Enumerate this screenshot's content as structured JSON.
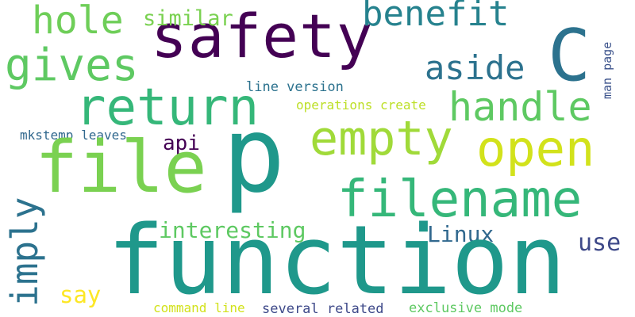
{
  "words": [
    {
      "text": "hole",
      "color": "#6ece58"
    },
    {
      "text": "safety",
      "color": "#440154"
    },
    {
      "text": "similar",
      "color": "#7ad151"
    },
    {
      "text": "benefit",
      "color": "#26828e"
    },
    {
      "text": "C",
      "color": "#2c728e"
    },
    {
      "text": "gives",
      "color": "#5ec962"
    },
    {
      "text": "aside",
      "color": "#2c728e"
    },
    {
      "text": "man page",
      "color": "#3b528b"
    },
    {
      "text": "line version",
      "color": "#2c728e"
    },
    {
      "text": "return",
      "color": "#35b779"
    },
    {
      "text": "handle",
      "color": "#5ec962"
    },
    {
      "text": "operations create",
      "color": "#bddf26"
    },
    {
      "text": "empty",
      "color": "#a0da39"
    },
    {
      "text": "mkstemp leaves",
      "color": "#31688e"
    },
    {
      "text": "api",
      "color": "#440154"
    },
    {
      "text": "open",
      "color": "#d2e21b"
    },
    {
      "text": "file",
      "color": "#7ad151"
    },
    {
      "text": "p",
      "color": "#1f988b"
    },
    {
      "text": "imply",
      "color": "#2c728e"
    },
    {
      "text": "filename",
      "color": "#35b779"
    },
    {
      "text": "interesting",
      "color": "#5ec962"
    },
    {
      "text": "Linux",
      "color": "#31688e"
    },
    {
      "text": "use",
      "color": "#3e4989"
    },
    {
      "text": "function",
      "color": "#1f988b"
    },
    {
      "text": "say",
      "color": "#fde725"
    },
    {
      "text": "command line",
      "color": "#d2e21b"
    },
    {
      "text": "several related",
      "color": "#3e4989"
    },
    {
      "text": "exclusive mode",
      "color": "#5ec962"
    }
  ]
}
